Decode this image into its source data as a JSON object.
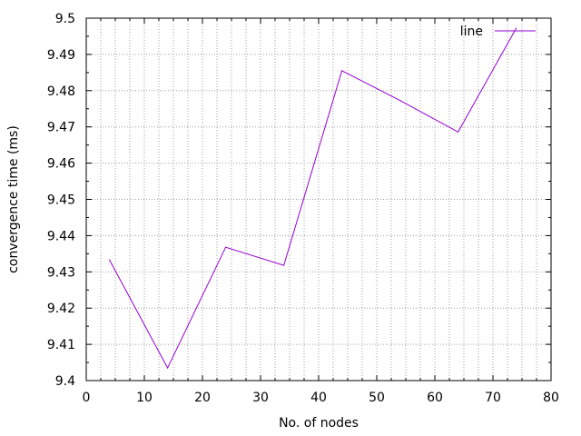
{
  "chart_data": {
    "type": "line",
    "title": "",
    "xlabel": "No. of nodes",
    "ylabel": "convergence time (ms)",
    "xlim": [
      0,
      80
    ],
    "ylim": [
      9.4,
      9.5
    ],
    "x_ticks": [
      0,
      10,
      20,
      30,
      40,
      50,
      60,
      70,
      80
    ],
    "x_tick_labels": [
      "0",
      "10",
      "20",
      "30",
      "40",
      "50",
      "60",
      "70",
      "80"
    ],
    "y_ticks": [
      9.4,
      9.41,
      9.42,
      9.43,
      9.44,
      9.45,
      9.46,
      9.47,
      9.48,
      9.49,
      9.5
    ],
    "y_tick_labels": [
      "9.4",
      "9.41",
      "9.42",
      "9.43",
      "9.44",
      "9.45",
      "9.46",
      "9.47",
      "9.48",
      "9.49",
      "9.5"
    ],
    "x_minor_step": 2.5,
    "y_minor_step": 0.005,
    "grid": true,
    "legend_position": "top-right",
    "series": [
      {
        "name": "line",
        "color": "#9400d3",
        "x": [
          4,
          14,
          24,
          34,
          44,
          54,
          64,
          74
        ],
        "y": [
          9.4333,
          9.4035,
          9.4368,
          9.4318,
          9.4855,
          9.4773,
          9.4686,
          9.4972
        ]
      }
    ]
  }
}
